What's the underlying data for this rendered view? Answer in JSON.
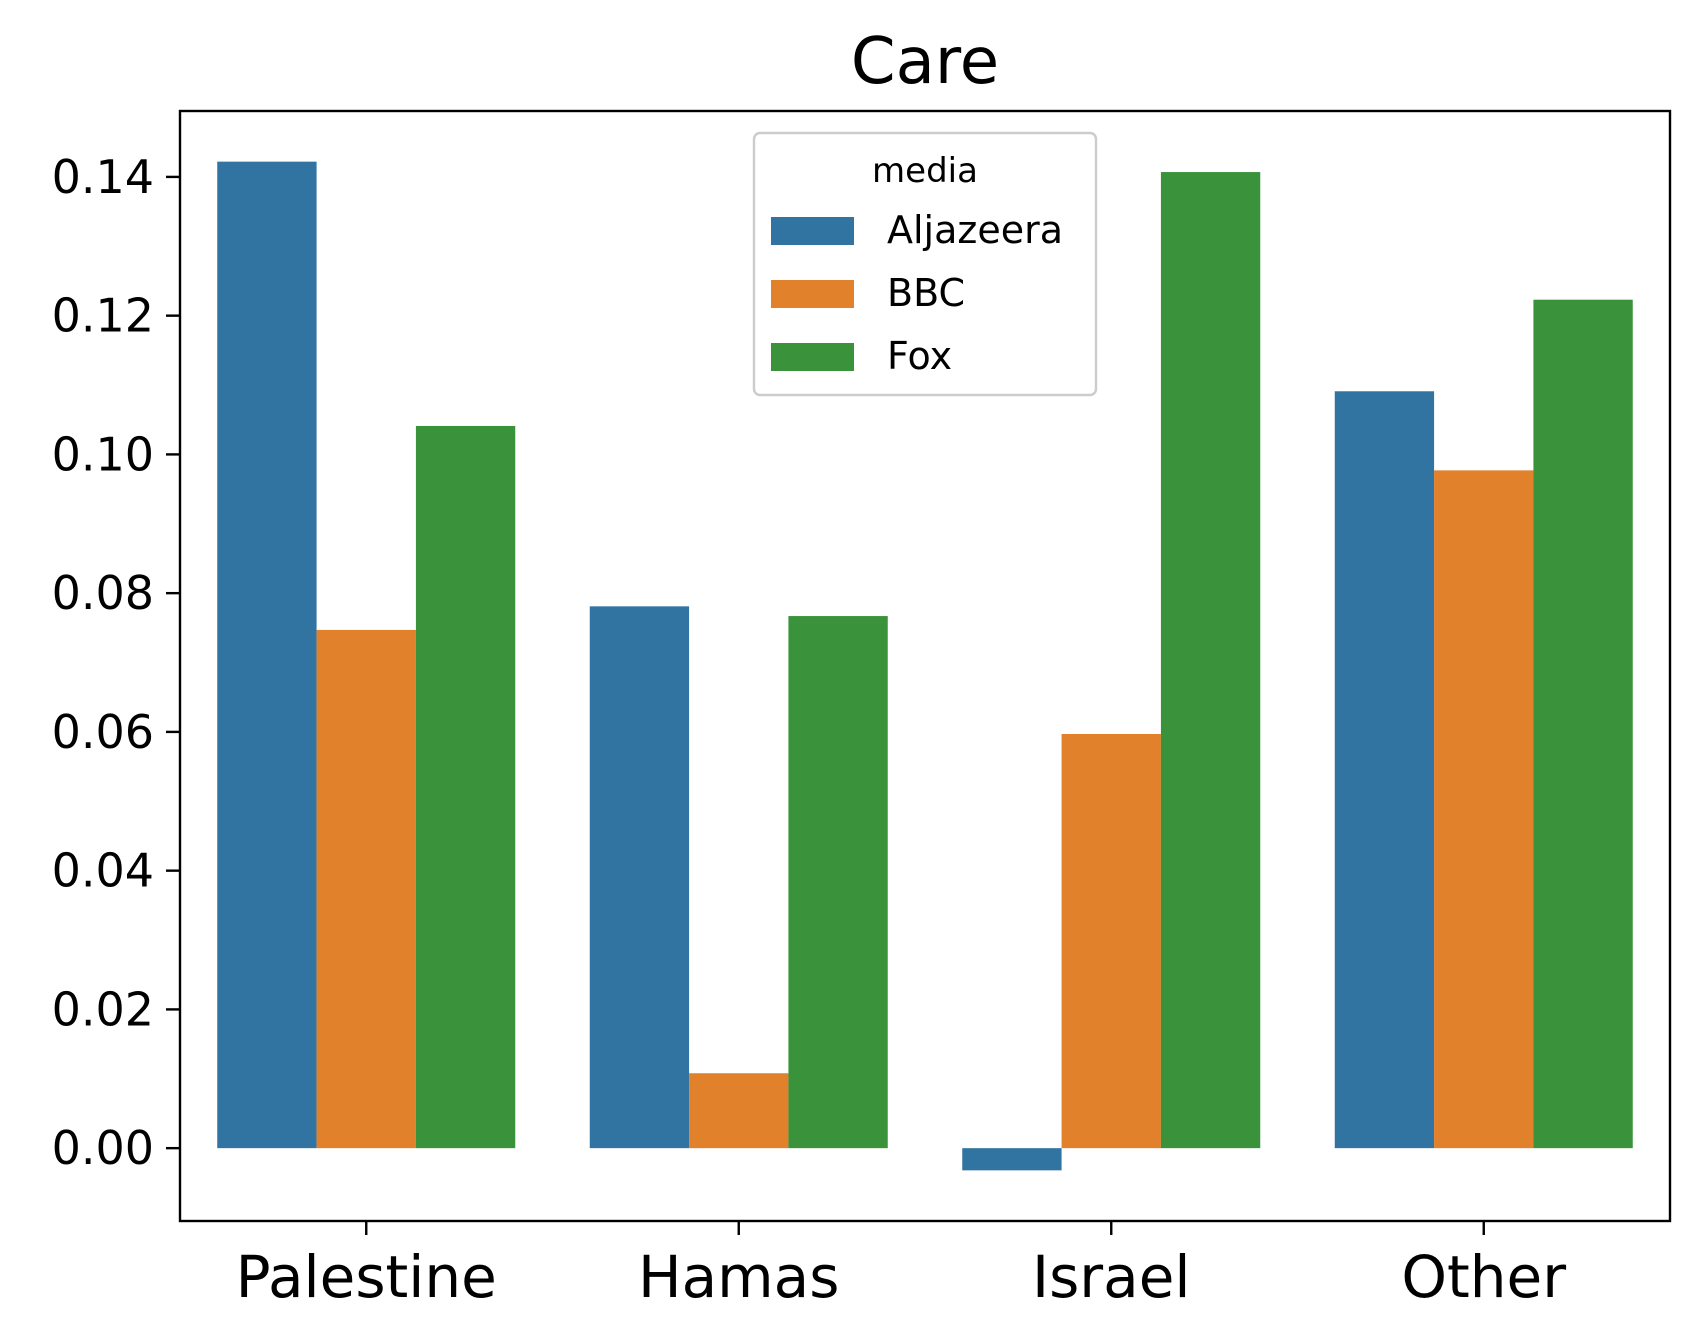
{
  "chart_data": {
    "type": "bar",
    "title": "Care",
    "xlabel": "",
    "ylabel": "",
    "categories": [
      "Palestine",
      "Hamas",
      "Israel",
      "Other"
    ],
    "ylim": [
      -0.0105,
      0.1495
    ],
    "yticks": [
      0.0,
      0.02,
      0.04,
      0.06,
      0.08,
      0.1,
      0.12,
      0.14
    ],
    "ytick_labels": [
      "0.00",
      "0.02",
      "0.04",
      "0.06",
      "0.08",
      "0.10",
      "0.12",
      "0.14"
    ],
    "grid": false,
    "legend": {
      "title": "media",
      "placement": "top-center"
    },
    "series": [
      {
        "name": "Aljazeera",
        "color": "#3274a1",
        "values": [
          0.1422,
          0.0781,
          -0.0032,
          0.1091
        ]
      },
      {
        "name": "BBC",
        "color": "#e1812c",
        "values": [
          0.0747,
          0.0108,
          0.0597,
          0.0977
        ]
      },
      {
        "name": "Fox",
        "color": "#3a923a",
        "values": [
          0.1041,
          0.0767,
          0.1407,
          0.1223
        ]
      }
    ]
  }
}
